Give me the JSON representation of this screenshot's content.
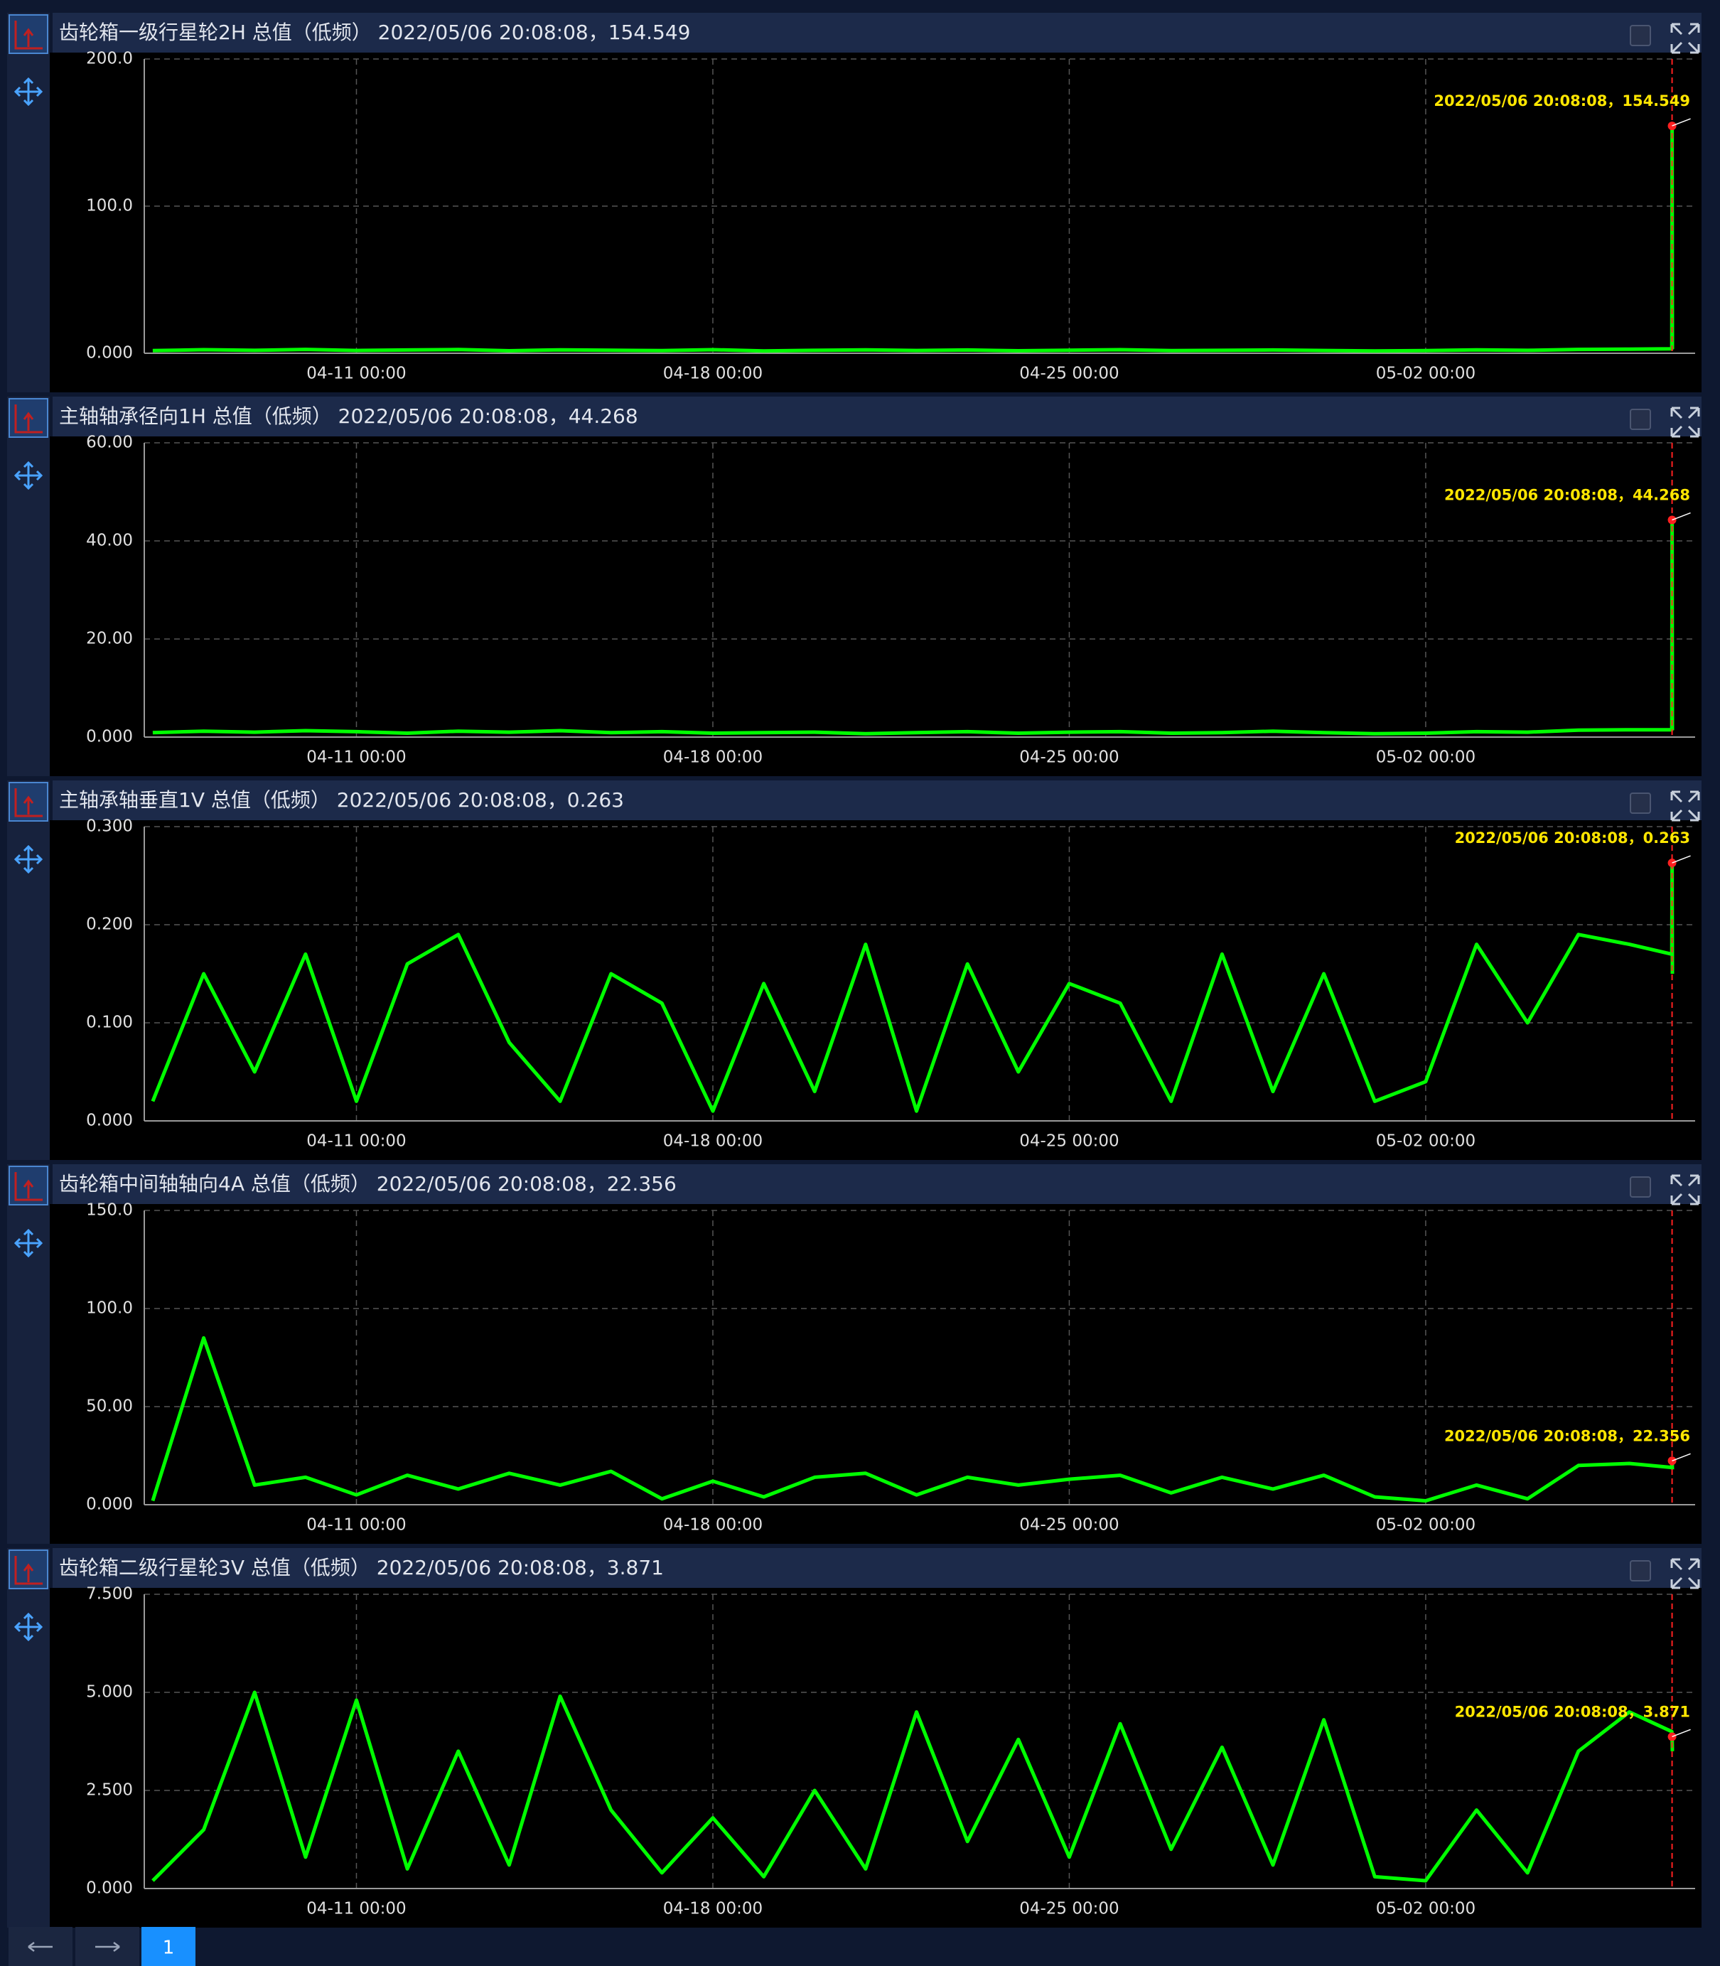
{
  "chart_data": [
    {
      "type": "line",
      "title": "齿轮箱一级行星轮2H 总值（低频）  2022/05/06 20:08:08，154.549",
      "color": "#00ff00",
      "grid": true,
      "x": [
        "04-07 00:00",
        "04-08 00:00",
        "04-09 00:00",
        "04-10 00:00",
        "04-11 00:00",
        "04-12 00:00",
        "04-13 00:00",
        "04-14 00:00",
        "04-15 00:00",
        "04-16 00:00",
        "04-17 00:00",
        "04-18 00:00",
        "04-19 00:00",
        "04-20 00:00",
        "04-21 00:00",
        "04-22 00:00",
        "04-23 00:00",
        "04-24 00:00",
        "04-25 00:00",
        "04-26 00:00",
        "04-27 00:00",
        "04-28 00:00",
        "04-29 00:00",
        "04-30 00:00",
        "05-01 00:00",
        "05-02 00:00",
        "05-03 00:00",
        "05-04 00:00",
        "05-05 00:00",
        "05-06 00:00",
        "05-06 20:00",
        "05-06 20:08",
        "05-06 20:16"
      ],
      "values": [
        1.8,
        2.4,
        2.0,
        2.6,
        1.9,
        2.2,
        2.5,
        1.7,
        2.3,
        2.1,
        1.8,
        2.4,
        1.6,
        2.0,
        2.3,
        1.9,
        2.2,
        1.7,
        2.1,
        2.4,
        1.8,
        2.0,
        2.2,
        1.9,
        1.6,
        1.8,
        2.3,
        2.0,
        2.6,
        2.8,
        3.0,
        154.549,
        2.9
      ],
      "xlim": [
        "04-06 20:00",
        "05-07 07:00"
      ],
      "xticks": [
        "04-11 00:00",
        "04-18 00:00",
        "04-25 00:00",
        "05-02 00:00"
      ],
      "ylim": [
        0,
        200
      ],
      "yticks": [
        {
          "value": 0,
          "label": "0.000"
        },
        {
          "value": 100,
          "label": "100.0"
        },
        {
          "value": 200,
          "label": "200.0"
        }
      ],
      "marker": {
        "x": "05-06 20:08",
        "value": 154.549,
        "label": "2022/05/06 20:08:08，154.549"
      }
    },
    {
      "type": "line",
      "title": "主轴轴承径向1H 总值（低频）  2022/05/06 20:08:08，44.268",
      "color": "#00ff00",
      "grid": true,
      "x": [
        "04-07 00:00",
        "04-08 00:00",
        "04-09 00:00",
        "04-10 00:00",
        "04-11 00:00",
        "04-12 00:00",
        "04-13 00:00",
        "04-14 00:00",
        "04-15 00:00",
        "04-16 00:00",
        "04-17 00:00",
        "04-18 00:00",
        "04-19 00:00",
        "04-20 00:00",
        "04-21 00:00",
        "04-22 00:00",
        "04-23 00:00",
        "04-24 00:00",
        "04-25 00:00",
        "04-26 00:00",
        "04-27 00:00",
        "04-28 00:00",
        "04-29 00:00",
        "04-30 00:00",
        "05-01 00:00",
        "05-02 00:00",
        "05-03 00:00",
        "05-04 00:00",
        "05-05 00:00",
        "05-06 00:00",
        "05-06 20:00",
        "05-06 20:08",
        "05-06 20:16"
      ],
      "values": [
        0.9,
        1.2,
        1.0,
        1.3,
        1.1,
        0.8,
        1.2,
        1.0,
        1.3,
        0.9,
        1.1,
        0.8,
        0.9,
        1.0,
        0.7,
        0.9,
        1.1,
        0.8,
        1.0,
        1.1,
        0.8,
        0.9,
        1.2,
        0.9,
        0.7,
        0.8,
        1.1,
        1.0,
        1.4,
        1.5,
        1.5,
        44.268,
        1.4
      ],
      "xlim": [
        "04-06 20:00",
        "05-07 07:00"
      ],
      "xticks": [
        "04-11 00:00",
        "04-18 00:00",
        "04-25 00:00",
        "05-02 00:00"
      ],
      "ylim": [
        0,
        60
      ],
      "yticks": [
        {
          "value": 0,
          "label": "0.000"
        },
        {
          "value": 20,
          "label": "20.00"
        },
        {
          "value": 40,
          "label": "40.00"
        },
        {
          "value": 60,
          "label": "60.00"
        }
      ],
      "marker": {
        "x": "05-06 20:08",
        "value": 44.268,
        "label": "2022/05/06 20:08:08，44.268"
      }
    },
    {
      "type": "line",
      "title": "主轴承轴垂直1V 总值（低频）  2022/05/06 20:08:08，0.263",
      "color": "#00ff00",
      "grid": true,
      "x": [
        "04-07 00:00",
        "04-08 00:00",
        "04-09 00:00",
        "04-10 00:00",
        "04-11 00:00",
        "04-12 00:00",
        "04-13 00:00",
        "04-14 00:00",
        "04-15 00:00",
        "04-16 00:00",
        "04-17 00:00",
        "04-18 00:00",
        "04-19 00:00",
        "04-20 00:00",
        "04-21 00:00",
        "04-22 00:00",
        "04-23 00:00",
        "04-24 00:00",
        "04-25 00:00",
        "04-26 00:00",
        "04-27 00:00",
        "04-28 00:00",
        "04-29 00:00",
        "04-30 00:00",
        "05-01 00:00",
        "05-02 00:00",
        "05-03 00:00",
        "05-04 00:00",
        "05-05 00:00",
        "05-06 00:00",
        "05-06 20:00",
        "05-06 20:08",
        "05-06 20:16"
      ],
      "values": [
        0.02,
        0.15,
        0.05,
        0.17,
        0.02,
        0.16,
        0.19,
        0.08,
        0.02,
        0.15,
        0.12,
        0.01,
        0.14,
        0.03,
        0.18,
        0.01,
        0.16,
        0.05,
        0.14,
        0.12,
        0.02,
        0.17,
        0.03,
        0.15,
        0.02,
        0.04,
        0.18,
        0.1,
        0.19,
        0.18,
        0.17,
        0.263,
        0.15
      ],
      "xlim": [
        "04-06 20:00",
        "05-07 07:00"
      ],
      "xticks": [
        "04-11 00:00",
        "04-18 00:00",
        "04-25 00:00",
        "05-02 00:00"
      ],
      "ylim": [
        0,
        0.3
      ],
      "yticks": [
        {
          "value": 0,
          "label": "0.000"
        },
        {
          "value": 0.1,
          "label": "0.100"
        },
        {
          "value": 0.2,
          "label": "0.200"
        },
        {
          "value": 0.3,
          "label": "0.300"
        }
      ],
      "marker": {
        "x": "05-06 20:08",
        "value": 0.263,
        "label": "2022/05/06 20:08:08，0.263"
      }
    },
    {
      "type": "line",
      "title": "齿轮箱中间轴轴向4A 总值（低频）  2022/05/06 20:08:08，22.356",
      "color": "#00ff00",
      "grid": true,
      "x": [
        "04-07 00:00",
        "04-08 00:00",
        "04-09 00:00",
        "04-10 00:00",
        "04-11 00:00",
        "04-12 00:00",
        "04-13 00:00",
        "04-14 00:00",
        "04-15 00:00",
        "04-16 00:00",
        "04-17 00:00",
        "04-18 00:00",
        "04-19 00:00",
        "04-20 00:00",
        "04-21 00:00",
        "04-22 00:00",
        "04-23 00:00",
        "04-24 00:00",
        "04-25 00:00",
        "04-26 00:00",
        "04-27 00:00",
        "04-28 00:00",
        "04-29 00:00",
        "04-30 00:00",
        "05-01 00:00",
        "05-02 00:00",
        "05-03 00:00",
        "05-04 00:00",
        "05-05 00:00",
        "05-06 00:00",
        "05-06 20:00",
        "05-06 20:08",
        "05-06 20:16"
      ],
      "values": [
        2,
        85,
        10,
        14,
        5,
        15,
        8,
        16,
        10,
        17,
        3,
        12,
        4,
        14,
        16,
        5,
        14,
        10,
        13,
        15,
        6,
        14,
        8,
        15,
        4,
        2,
        10,
        3,
        20,
        21,
        19,
        22.356,
        18
      ],
      "xlim": [
        "04-06 20:00",
        "05-07 07:00"
      ],
      "xticks": [
        "04-11 00:00",
        "04-18 00:00",
        "04-25 00:00",
        "05-02 00:00"
      ],
      "ylim": [
        0,
        150
      ],
      "yticks": [
        {
          "value": 0,
          "label": "0.000"
        },
        {
          "value": 50,
          "label": "50.00"
        },
        {
          "value": 100,
          "label": "100.0"
        },
        {
          "value": 150,
          "label": "150.0"
        }
      ],
      "marker": {
        "x": "05-06 20:08",
        "value": 22.356,
        "label": "2022/05/06 20:08:08，22.356"
      }
    },
    {
      "type": "line",
      "title": "齿轮箱二级行星轮3V 总值（低频）  2022/05/06 20:08:08，3.871",
      "color": "#00ff00",
      "grid": true,
      "x": [
        "04-07 00:00",
        "04-08 00:00",
        "04-09 00:00",
        "04-10 00:00",
        "04-11 00:00",
        "04-12 00:00",
        "04-13 00:00",
        "04-14 00:00",
        "04-15 00:00",
        "04-16 00:00",
        "04-17 00:00",
        "04-18 00:00",
        "04-19 00:00",
        "04-20 00:00",
        "04-21 00:00",
        "04-22 00:00",
        "04-23 00:00",
        "04-24 00:00",
        "04-25 00:00",
        "04-26 00:00",
        "04-27 00:00",
        "04-28 00:00",
        "04-29 00:00",
        "04-30 00:00",
        "05-01 00:00",
        "05-02 00:00",
        "05-03 00:00",
        "05-04 00:00",
        "05-05 00:00",
        "05-06 00:00",
        "05-06 20:00",
        "05-06 20:08",
        "05-06 20:16"
      ],
      "values": [
        0.2,
        1.5,
        5.0,
        0.8,
        4.8,
        0.5,
        3.5,
        0.6,
        4.9,
        2.0,
        0.4,
        1.8,
        0.3,
        2.5,
        0.5,
        4.5,
        1.2,
        3.8,
        0.8,
        4.2,
        1.0,
        3.6,
        0.6,
        4.3,
        0.3,
        0.2,
        2.0,
        0.4,
        3.5,
        4.5,
        4.0,
        3.871,
        3.5
      ],
      "xlim": [
        "04-06 20:00",
        "05-07 07:00"
      ],
      "xticks": [
        "04-11 00:00",
        "04-18 00:00",
        "04-25 00:00",
        "05-02 00:00"
      ],
      "ylim": [
        0,
        7.5
      ],
      "yticks": [
        {
          "value": 0,
          "label": "0.000"
        },
        {
          "value": 2.5,
          "label": "2.500"
        },
        {
          "value": 5,
          "label": "5.000"
        },
        {
          "value": 7.5,
          "label": "7.500"
        }
      ],
      "marker": {
        "x": "05-06 20:08",
        "value": 3.871,
        "label": "2022/05/06 20:08:08，3.871"
      }
    }
  ],
  "pagination": {
    "current": 1
  }
}
